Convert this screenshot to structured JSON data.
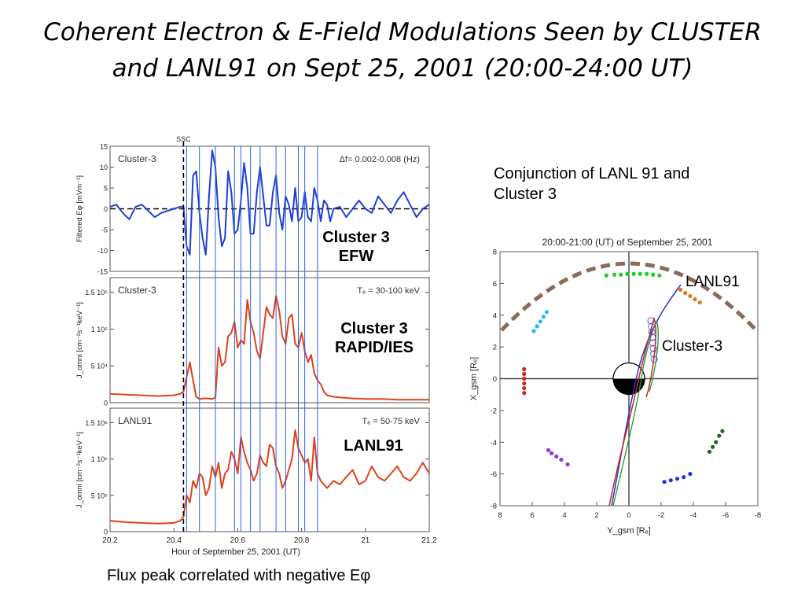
{
  "slide": {
    "title_line1": "Coherent Electron & E-Field Modulations Seen by CLUSTER",
    "title_line2": "and LANL91 on Sept 25, 2001 (20:00-24:00 UT)",
    "conjunction_note_line1": "Conjunction of LANL 91 and",
    "conjunction_note_line2": "Cluster 3",
    "caption": "Flux peak correlated with negative Eφ"
  },
  "annotations": {
    "efw_line1": "Cluster 3",
    "efw_line2": "EFW",
    "rapid_line1": "Cluster 3",
    "rapid_line2": "RAPID/IES",
    "lanl": "LANL91",
    "orbit_lanl": "LANL91",
    "orbit_cluster": "Cluster-3"
  },
  "colors": {
    "efield": "#1f3fd0",
    "flux": "#e0401a",
    "marker_lines": "#2f5fe8",
    "orbit_blue": "#2233cc",
    "orbit_red": "#d02020",
    "orbit_green": "#229922",
    "dashed_arc": "#8b6a58"
  },
  "chart_data": [
    {
      "type": "line",
      "panel_label": "Cluster-3",
      "right_label": "Δf= 0.002-0.008 (Hz)",
      "ylabel": "Filtered Eφ [mVm⁻¹]",
      "ylim": [
        -15,
        15
      ],
      "yticks": [
        15,
        10,
        5,
        0,
        -5,
        -10,
        -15
      ],
      "xlim": [
        20.2,
        21.2
      ],
      "ssc_label": "SSC",
      "ssc_x": 20.43,
      "vlines": [
        20.44,
        20.48,
        20.53,
        20.59,
        20.61,
        20.64,
        20.67,
        20.72,
        20.75,
        20.79,
        20.81,
        20.85
      ],
      "x": [
        20.2,
        20.22,
        20.24,
        20.26,
        20.28,
        20.3,
        20.32,
        20.34,
        20.36,
        20.38,
        20.4,
        20.42,
        20.43,
        20.44,
        20.45,
        20.46,
        20.47,
        20.48,
        20.49,
        20.5,
        20.51,
        20.52,
        20.53,
        20.54,
        20.55,
        20.56,
        20.57,
        20.58,
        20.59,
        20.6,
        20.61,
        20.62,
        20.63,
        20.64,
        20.65,
        20.66,
        20.67,
        20.68,
        20.69,
        20.7,
        20.71,
        20.72,
        20.73,
        20.74,
        20.75,
        20.76,
        20.77,
        20.78,
        20.79,
        20.8,
        20.81,
        20.82,
        20.83,
        20.84,
        20.85,
        20.86,
        20.87,
        20.88,
        20.89,
        20.9,
        20.92,
        20.94,
        20.96,
        20.98,
        21.0,
        21.02,
        21.04,
        21.06,
        21.08,
        21.1,
        21.12,
        21.14,
        21.16,
        21.18,
        21.2
      ],
      "y": [
        0.5,
        1,
        -1,
        -2.5,
        0.5,
        1,
        -0.5,
        -2,
        -1,
        -0.5,
        0,
        0.5,
        0.5,
        -9,
        -11,
        8,
        9,
        -1,
        -7,
        -11,
        3,
        14,
        10,
        -2,
        -9,
        -7,
        9,
        4,
        -6,
        -5,
        2,
        11,
        5,
        -6,
        -6,
        4,
        10,
        3,
        -4,
        -4,
        4,
        8,
        -1,
        -5,
        3,
        1,
        -3,
        5,
        -3,
        -2,
        4,
        -2,
        -3,
        5,
        2,
        -3,
        2,
        1,
        -3,
        0,
        0.5,
        -2,
        0,
        2,
        0,
        -1,
        3,
        1,
        -1,
        2,
        4,
        1,
        -2,
        0,
        1
      ]
    },
    {
      "type": "line",
      "panel_label": "Cluster-3",
      "right_label": "Tₑ = 30-100 keV",
      "ylabel": "J_omni [cm⁻²s⁻¹keV⁻¹]",
      "ylim": [
        0,
        170000
      ],
      "yticks": [
        0,
        50000,
        100000,
        150000
      ],
      "ytick_labels": [
        "0",
        "5 10⁴",
        "1 10⁵",
        "1.5 10⁵"
      ],
      "xlim": [
        20.2,
        21.2
      ],
      "x": [
        20.2,
        20.25,
        20.3,
        20.35,
        20.4,
        20.42,
        20.43,
        20.44,
        20.45,
        20.46,
        20.47,
        20.48,
        20.5,
        20.52,
        20.53,
        20.54,
        20.55,
        20.56,
        20.57,
        20.58,
        20.59,
        20.6,
        20.61,
        20.62,
        20.63,
        20.64,
        20.65,
        20.66,
        20.67,
        20.68,
        20.69,
        20.7,
        20.71,
        20.72,
        20.73,
        20.74,
        20.75,
        20.76,
        20.77,
        20.78,
        20.79,
        20.8,
        20.81,
        20.82,
        20.83,
        20.84,
        20.85,
        20.86,
        20.87,
        20.88,
        20.9,
        20.95,
        21.0,
        21.05,
        21.1,
        21.15,
        21.2
      ],
      "y": [
        12000,
        11000,
        10000,
        9000,
        10000,
        12000,
        15000,
        35000,
        55000,
        30000,
        8000,
        5000,
        6000,
        5000,
        7000,
        75000,
        50000,
        55000,
        90000,
        95000,
        110000,
        75000,
        85000,
        80000,
        140000,
        110000,
        95000,
        70000,
        60000,
        95000,
        130000,
        120000,
        115000,
        145000,
        125000,
        90000,
        80000,
        115000,
        120000,
        80000,
        75000,
        95000,
        70000,
        55000,
        65000,
        40000,
        30000,
        25000,
        15000,
        10000,
        8000,
        6000,
        5000,
        5000,
        4000,
        4000,
        4000
      ]
    },
    {
      "type": "line",
      "panel_label": "LANL91",
      "right_label": "Tₑ = 50-75 keV",
      "ylabel": "J_omni [cm⁻²s⁻¹keV⁻¹]",
      "ylim": [
        0,
        170000
      ],
      "yticks": [
        0,
        50000,
        100000,
        150000
      ],
      "ytick_labels": [
        "0",
        "5 10⁵",
        "1 10⁶",
        "1.5 10⁶"
      ],
      "xlim": [
        20.2,
        21.2
      ],
      "xticks": [
        20.2,
        20.4,
        20.6,
        20.8,
        21.0,
        21.2
      ],
      "xtick_labels": [
        "20.2",
        "20.4",
        "20.6",
        "20.8",
        "21",
        "21.2"
      ],
      "xlabel": "Hour of September 25, 2001 (UT)",
      "x": [
        20.2,
        20.25,
        20.3,
        20.35,
        20.4,
        20.42,
        20.43,
        20.44,
        20.45,
        20.46,
        20.47,
        20.48,
        20.49,
        20.5,
        20.51,
        20.52,
        20.53,
        20.54,
        20.55,
        20.56,
        20.57,
        20.58,
        20.59,
        20.6,
        20.61,
        20.62,
        20.63,
        20.64,
        20.65,
        20.66,
        20.67,
        20.68,
        20.69,
        20.7,
        20.71,
        20.72,
        20.73,
        20.74,
        20.75,
        20.76,
        20.77,
        20.78,
        20.79,
        20.8,
        20.81,
        20.82,
        20.83,
        20.84,
        20.85,
        20.86,
        20.88,
        20.9,
        20.92,
        20.94,
        20.96,
        20.98,
        21.0,
        21.02,
        21.04,
        21.06,
        21.08,
        21.1,
        21.12,
        21.14,
        21.16,
        21.18,
        21.2
      ],
      "y": [
        15000,
        13000,
        12000,
        11000,
        12000,
        15000,
        20000,
        50000,
        40000,
        70000,
        60000,
        80000,
        75000,
        50000,
        60000,
        90000,
        75000,
        95000,
        60000,
        80000,
        85000,
        110000,
        100000,
        80000,
        130000,
        110000,
        95000,
        85000,
        70000,
        80000,
        105000,
        95000,
        90000,
        120000,
        115000,
        90000,
        80000,
        60000,
        70000,
        85000,
        100000,
        140000,
        115000,
        105000,
        95000,
        100000,
        70000,
        130000,
        80000,
        70000,
        60000,
        70000,
        65000,
        75000,
        85000,
        65000,
        70000,
        90000,
        75000,
        70000,
        80000,
        90000,
        75000,
        70000,
        80000,
        95000,
        80000
      ]
    },
    {
      "type": "scatter",
      "title": "20:00-21:00 (UT) of September 25, 2001",
      "xlabel": "Y_gsm [Rₑ]",
      "ylabel": "X_gsm [Rₑ]",
      "xlim": [
        8,
        -8
      ],
      "ylim": [
        -8,
        8
      ],
      "xticks": [
        8,
        6,
        4,
        2,
        0,
        -2,
        -4,
        -6,
        -8
      ],
      "yticks": [
        -8,
        -6,
        -4,
        -2,
        0,
        2,
        4,
        6,
        8
      ],
      "dot_groups": [
        {
          "color": "#22cc22",
          "points": [
            [
              1.4,
              6.5
            ],
            [
              0.9,
              6.55
            ],
            [
              0.5,
              6.55
            ],
            [
              0.1,
              6.6
            ],
            [
              -0.3,
              6.6
            ],
            [
              -0.7,
              6.6
            ],
            [
              -1.1,
              6.6
            ],
            [
              -1.5,
              6.55
            ],
            [
              -1.9,
              6.5
            ]
          ]
        },
        {
          "color": "#dd7722",
          "points": [
            [
              -3.2,
              5.6
            ],
            [
              -3.5,
              5.4
            ],
            [
              -3.8,
              5.2
            ],
            [
              -4.1,
              5.0
            ],
            [
              -4.4,
              4.8
            ]
          ]
        },
        {
          "color": "#22bbee",
          "points": [
            [
              5.1,
              4.2
            ],
            [
              5.3,
              3.9
            ],
            [
              5.5,
              3.6
            ],
            [
              5.7,
              3.3
            ],
            [
              5.9,
              3.0
            ]
          ]
        },
        {
          "color": "#cc2222",
          "points": [
            [
              6.5,
              0.6
            ],
            [
              6.5,
              0.3
            ],
            [
              6.5,
              0.0
            ],
            [
              6.5,
              -0.3
            ],
            [
              6.5,
              -0.6
            ],
            [
              6.5,
              -0.9
            ]
          ]
        },
        {
          "color": "#9933dd",
          "points": [
            [
              5.0,
              -4.5
            ],
            [
              4.8,
              -4.7
            ],
            [
              4.5,
              -4.9
            ],
            [
              4.2,
              -5.1
            ],
            [
              3.8,
              -5.4
            ]
          ]
        },
        {
          "color": "#2233dd",
          "points": [
            [
              -2.2,
              -6.5
            ],
            [
              -2.6,
              -6.4
            ],
            [
              -3.0,
              -6.3
            ],
            [
              -3.4,
              -6.2
            ],
            [
              -3.8,
              -6.0
            ]
          ]
        },
        {
          "color": "#226622",
          "points": [
            [
              -5.0,
              -4.6
            ],
            [
              -5.2,
              -4.3
            ],
            [
              -5.4,
              -4.0
            ],
            [
              -5.6,
              -3.6
            ],
            [
              -5.8,
              -3.3
            ]
          ]
        }
      ]
    }
  ]
}
